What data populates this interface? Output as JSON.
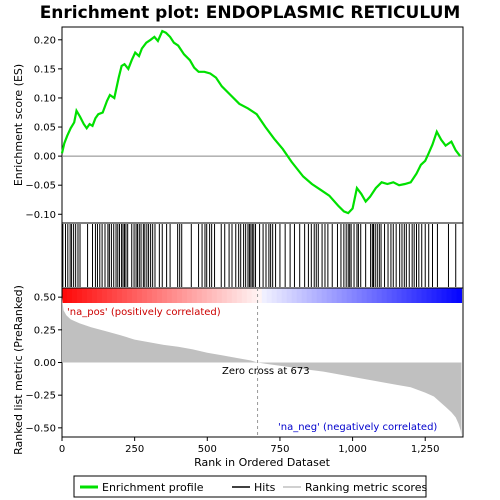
{
  "chart_data": {
    "type": "line",
    "title": "Enrichment plot: ENDOPLASMIC RETICULUM",
    "xlabel": "Rank in Ordered Dataset",
    "ylabel_top": "Enrichment score (ES)",
    "ylabel_bottom": "Ranked list metric (PreRanked)",
    "x_range": [
      0,
      1380
    ],
    "x_ticks": [
      0,
      250,
      500,
      750,
      1000,
      1250
    ],
    "es_ylim": [
      -0.115,
      0.222
    ],
    "es_yticks": [
      -0.1,
      -0.05,
      0.0,
      0.05,
      0.1,
      0.15,
      0.2
    ],
    "es_ytick_labels": [
      "−0.10",
      "−0.05",
      "0.00",
      "0.05",
      "0.10",
      "0.15",
      "0.20"
    ],
    "metric_ylim": [
      -0.57,
      0.57
    ],
    "metric_yticks": [
      -0.5,
      -0.25,
      0.0,
      0.25,
      0.5
    ],
    "metric_ytick_labels": [
      "−0.50",
      "−0.25",
      "0.00",
      "0.25",
      "0.50"
    ],
    "annotations": {
      "pos": "'na_pos' (positively correlated)",
      "neg": "'na_neg' (negatively correlated)",
      "zero": "Zero cross at 673"
    },
    "zero_cross": 673,
    "series": [
      {
        "name": "Enrichment profile",
        "color": "#00e000",
        "x": [
          0,
          8,
          18,
          30,
          42,
          50,
          62,
          75,
          85,
          95,
          105,
          115,
          125,
          140,
          155,
          165,
          180,
          195,
          205,
          215,
          228,
          240,
          252,
          265,
          275,
          290,
          305,
          318,
          330,
          345,
          358,
          372,
          385,
          400,
          420,
          440,
          455,
          470,
          490,
          510,
          530,
          550,
          580,
          610,
          640,
          670,
          700,
          730,
          760,
          790,
          830,
          860,
          890,
          920,
          950,
          970,
          985,
          1000,
          1015,
          1030,
          1045,
          1060,
          1080,
          1100,
          1120,
          1140,
          1160,
          1180,
          1200,
          1220,
          1235,
          1250,
          1262,
          1275,
          1290,
          1305,
          1320,
          1340,
          1355,
          1370
        ],
        "y": [
          0.005,
          0.022,
          0.035,
          0.048,
          0.058,
          0.078,
          0.068,
          0.055,
          0.048,
          0.055,
          0.052,
          0.065,
          0.072,
          0.075,
          0.095,
          0.105,
          0.1,
          0.135,
          0.155,
          0.158,
          0.15,
          0.165,
          0.178,
          0.172,
          0.185,
          0.195,
          0.2,
          0.205,
          0.198,
          0.215,
          0.212,
          0.205,
          0.195,
          0.19,
          0.175,
          0.165,
          0.152,
          0.145,
          0.145,
          0.142,
          0.135,
          0.12,
          0.105,
          0.09,
          0.082,
          0.072,
          0.05,
          0.03,
          0.012,
          -0.01,
          -0.035,
          -0.048,
          -0.058,
          -0.068,
          -0.085,
          -0.095,
          -0.098,
          -0.09,
          -0.055,
          -0.065,
          -0.078,
          -0.07,
          -0.055,
          -0.045,
          -0.048,
          -0.045,
          -0.05,
          -0.048,
          -0.045,
          -0.03,
          -0.015,
          -0.008,
          0.005,
          0.02,
          0.042,
          0.028,
          0.018,
          0.025,
          0.01,
          0.0
        ]
      }
    ],
    "hits": [
      3,
      12,
      20,
      28,
      33,
      40,
      47,
      55,
      62,
      88,
      105,
      115,
      122,
      130,
      138,
      148,
      158,
      163,
      170,
      178,
      186,
      192,
      198,
      205,
      210,
      215,
      220,
      226,
      240,
      248,
      255,
      260,
      266,
      272,
      280,
      285,
      292,
      298,
      305,
      312,
      320,
      335,
      345,
      360,
      372,
      398,
      405,
      412,
      445,
      470,
      482,
      492,
      498,
      508,
      515,
      525,
      548,
      560,
      575,
      585,
      598,
      608,
      615,
      625,
      632,
      640,
      645,
      650,
      655,
      660,
      666,
      680,
      692,
      702,
      712,
      718,
      725,
      735,
      750,
      768,
      785,
      800,
      818,
      835,
      848,
      858,
      868,
      875,
      882,
      895,
      905,
      915,
      930,
      948,
      960,
      970,
      978,
      985,
      990,
      995,
      1005,
      1015,
      1020,
      1028,
      1045,
      1062,
      1068,
      1072,
      1078,
      1085,
      1092,
      1098,
      1110,
      1122,
      1132,
      1140,
      1150,
      1162,
      1170,
      1178,
      1185,
      1195,
      1205,
      1212,
      1220,
      1228,
      1238,
      1250,
      1262,
      1275,
      1292,
      1330,
      1355
    ],
    "metric": {
      "x": [
        0,
        5,
        15,
        30,
        60,
        100,
        150,
        200,
        250,
        300,
        350,
        400,
        450,
        500,
        550,
        600,
        650,
        673,
        700,
        750,
        800,
        850,
        900,
        950,
        1000,
        1050,
        1100,
        1150,
        1200,
        1250,
        1280,
        1300,
        1320,
        1340,
        1355,
        1365,
        1372,
        1375
      ],
      "y": [
        0.5,
        0.4,
        0.36,
        0.33,
        0.3,
        0.27,
        0.24,
        0.21,
        0.175,
        0.155,
        0.135,
        0.12,
        0.1,
        0.075,
        0.055,
        0.035,
        0.015,
        0.0,
        -0.01,
        -0.025,
        -0.04,
        -0.055,
        -0.07,
        -0.09,
        -0.11,
        -0.13,
        -0.15,
        -0.17,
        -0.19,
        -0.23,
        -0.26,
        -0.3,
        -0.34,
        -0.38,
        -0.42,
        -0.47,
        -0.52,
        -0.56
      ]
    }
  },
  "legend": {
    "items": [
      {
        "label": "Enrichment profile",
        "color": "#00e000"
      },
      {
        "label": "Hits",
        "color": "#000000"
      },
      {
        "label": "Ranking metric scores",
        "color": "#c0c0c0"
      }
    ]
  }
}
